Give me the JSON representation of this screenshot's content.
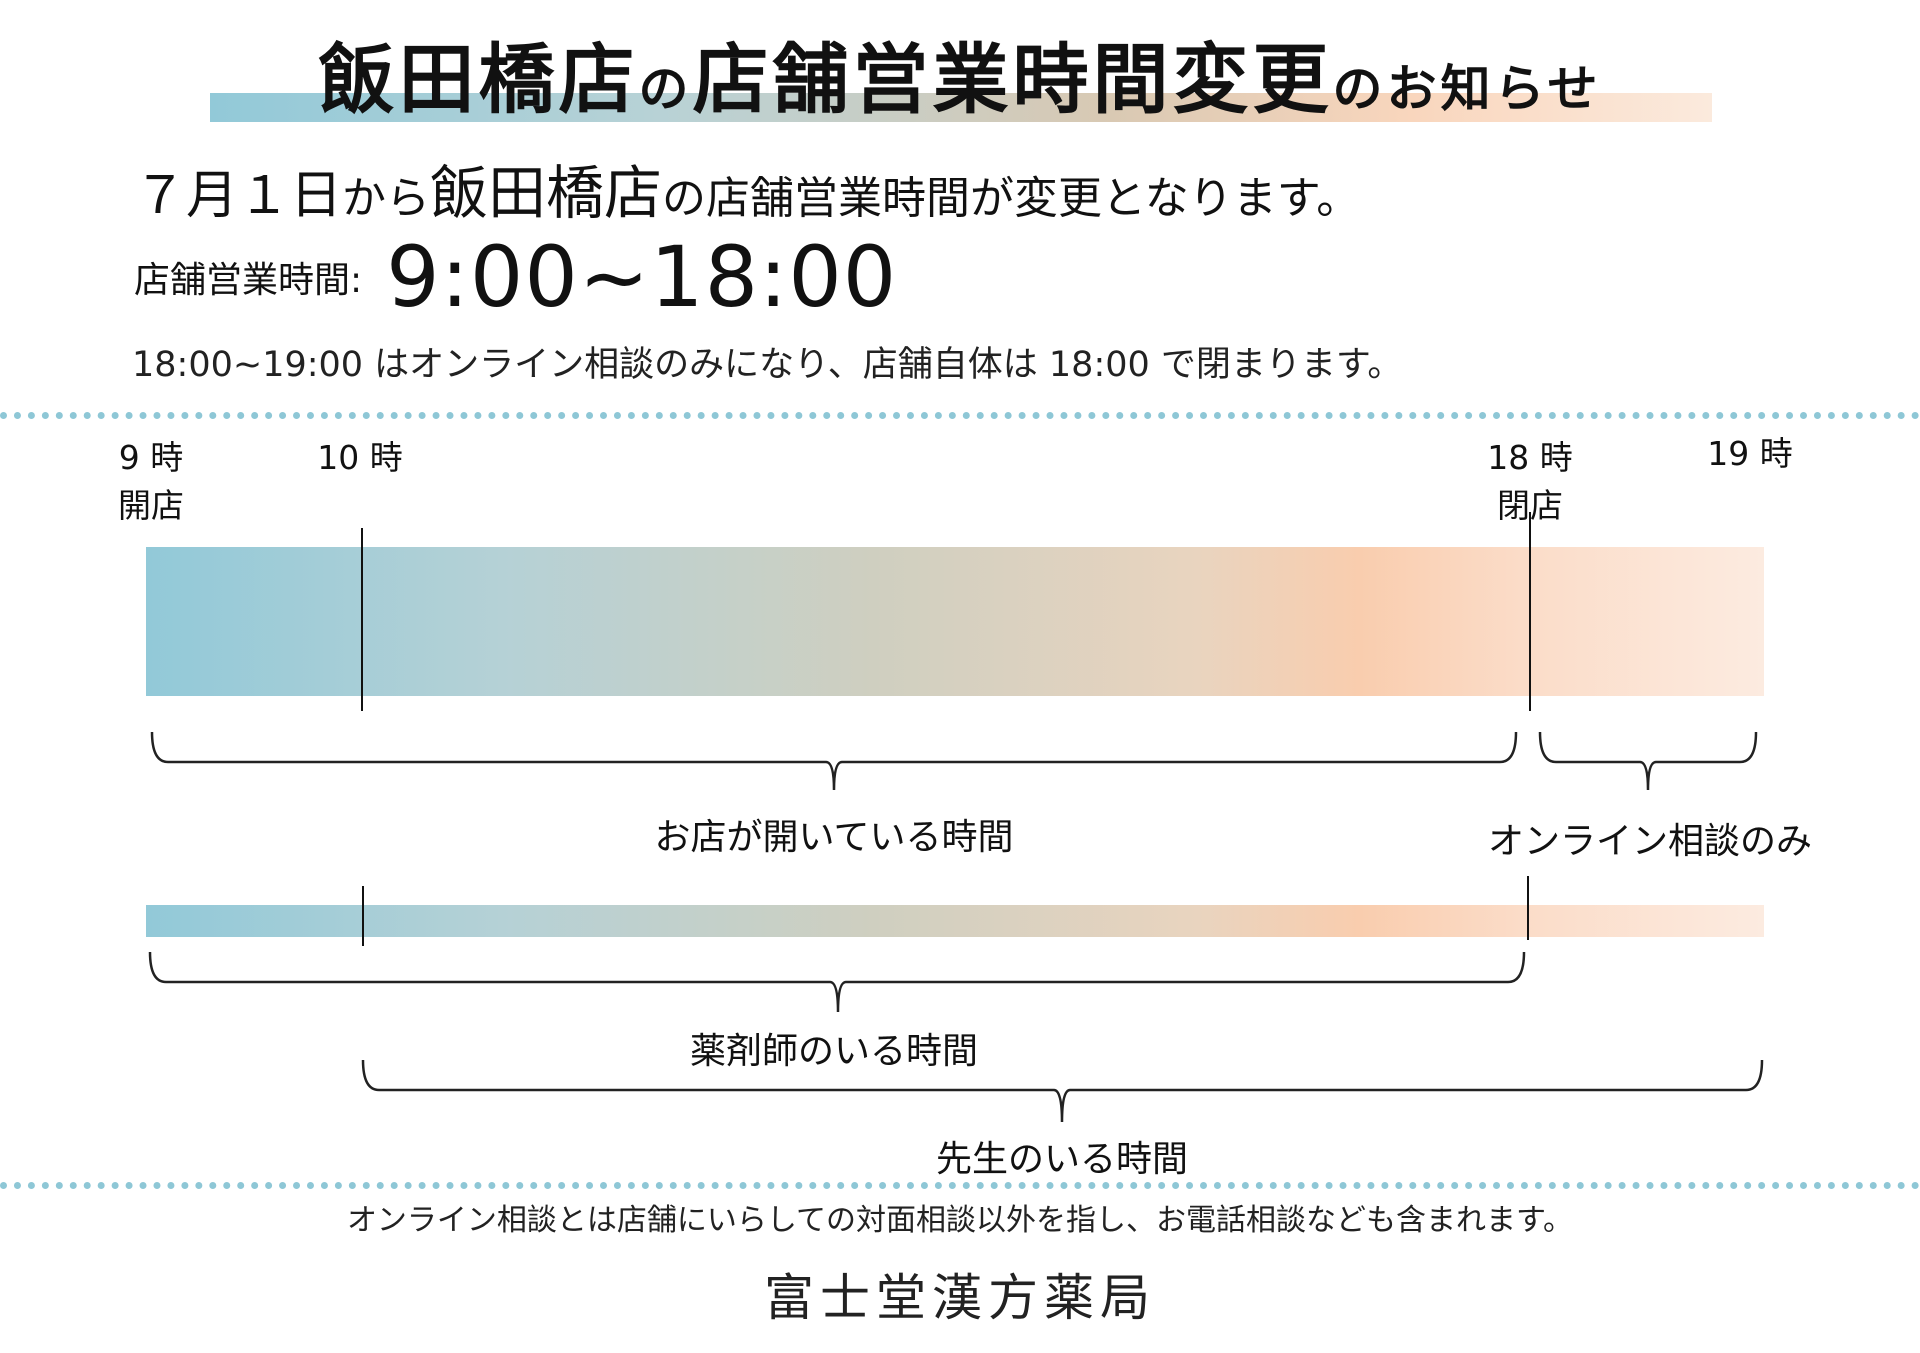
{
  "title": {
    "part1": "飯田橋店",
    "no1": "の",
    "part2": "店舗営業時間変更",
    "no2": "のお知らせ"
  },
  "intro": {
    "date": "７月１日",
    "kara": "から",
    "store": "飯田橋店",
    "rest": "の店舗営業時間が変更となります。"
  },
  "hours": {
    "label": "店舗営業時間:",
    "value": "9:00~18:00"
  },
  "note": "18:00~19:00 はオンライン相談のみになり、店舗自体は 18:00 で閉まります。",
  "timeline": {
    "t9": "9 時",
    "t9_sub": "開店",
    "t10": "10 時",
    "t18": "18 時",
    "t18_sub": "閉店",
    "t19": "19 時"
  },
  "brackets": {
    "open_hours": "お店が開いている時間",
    "online_only": "オンライン相談のみ",
    "pharmacist": "薬剤師のいる時間",
    "teacher": "先生のいる時間"
  },
  "footer": {
    "note": "オンライン相談とは店舗にいらしての対面相談以外を指し、お電話相談なども含まれます。",
    "name": "富士堂漢方薬局"
  },
  "colors": {
    "accent_blue": "#92c9d8",
    "accent_peach": "#f9cdae",
    "dots": "#8ec7d6"
  }
}
